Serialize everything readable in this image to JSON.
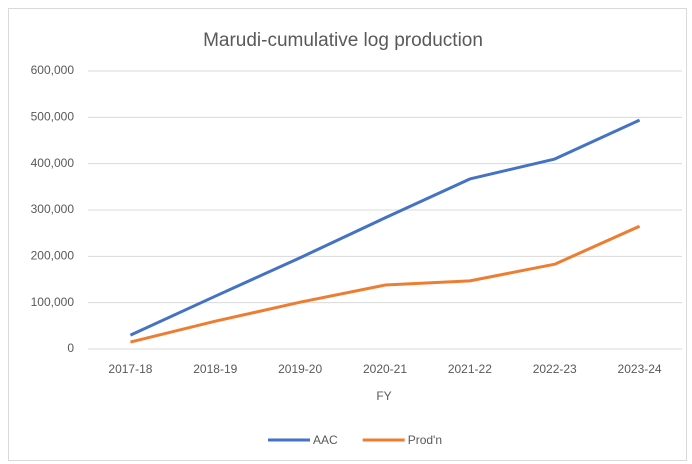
{
  "chart_data": {
    "type": "line",
    "title": "Marudi-cumulative log production",
    "x_label": "FY",
    "categories": [
      "2017-18",
      "2018-19",
      "2019-20",
      "2020-21",
      "2021-22",
      "2022-23",
      "2023-24"
    ],
    "series": [
      {
        "name": "AAC",
        "color": "#4472c4",
        "values": [
          30000,
          114000,
          197000,
          283000,
          367000,
          410000,
          494000
        ]
      },
      {
        "name": "Prod'n",
        "color": "#ed7d31",
        "values": [
          15000,
          60000,
          101000,
          138000,
          147000,
          183000,
          265000
        ]
      }
    ],
    "ylim": [
      0,
      600000
    ],
    "yticks": [
      0,
      {
        "value": 100000,
        "label": "100,000"
      },
      {
        "value": 200000,
        "label": "200,000"
      },
      {
        "value": 300000,
        "label": "300,000"
      },
      {
        "value": 400000,
        "label": "400,000"
      },
      {
        "value": 500000,
        "label": "500,000"
      },
      {
        "value": 600000,
        "label": "600,000"
      }
    ],
    "grid": true,
    "legend": "bottom"
  }
}
